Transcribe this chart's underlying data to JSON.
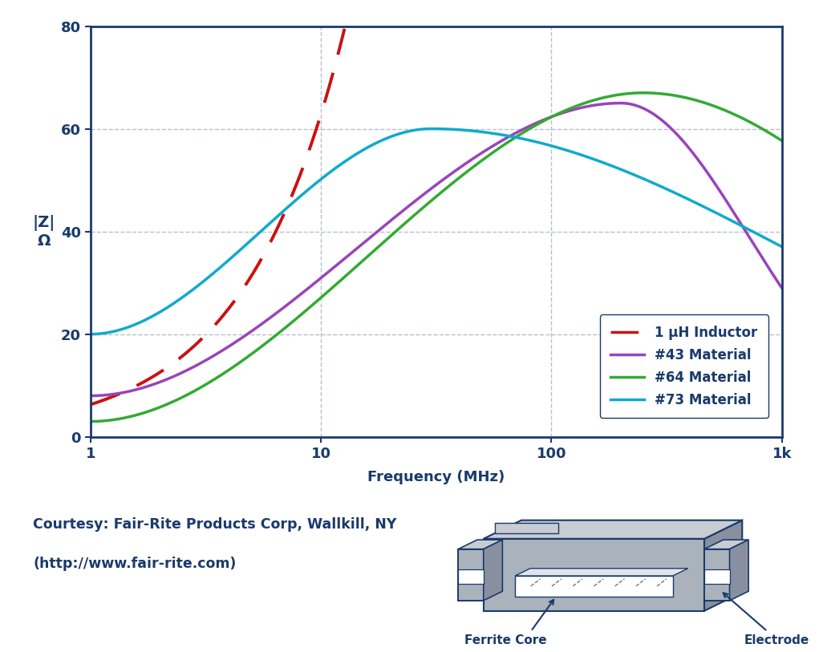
{
  "xlabel": "Frequency (MHz)",
  "xlim": [
    1,
    1000
  ],
  "ylim": [
    0,
    80
  ],
  "yticks": [
    0,
    20,
    40,
    60,
    80
  ],
  "xtick_labels": [
    "1",
    "10",
    "100",
    "1k"
  ],
  "bg_color": "#ffffff",
  "border_color": "#1a3a6b",
  "grid_color": "#b0b8c8",
  "text_color": "#1a3a6b",
  "inductor_color": "#cc1111",
  "mat43_color": "#9944bb",
  "mat64_color": "#33aa33",
  "mat73_color": "#11aacc",
  "legend_labels": [
    "1 μH Inductor",
    "#43 Material",
    "#64 Material",
    "#73 Material"
  ],
  "courtesy_line1": "Courtesy: Fair-Rite Products Corp, Wallkill, NY",
  "courtesy_line2": "(http://www.fair-rite.com)",
  "ferrite_label": "Ferrite Core",
  "electrode_label": "Electrode",
  "gray_fill": "#aab2bc",
  "gray_light": "#c8cdd4",
  "gray_dark": "#8890a0"
}
